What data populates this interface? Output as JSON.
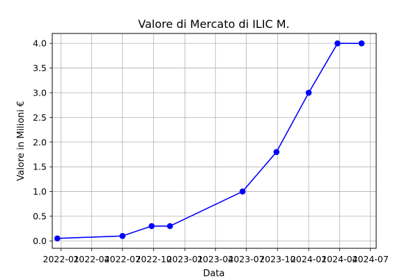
{
  "chart_data": {
    "type": "line",
    "title": "Valore di Mercato di ILIC M.",
    "xlabel": "Data",
    "ylabel": "Valore in Milioni €",
    "xlim": [
      "2021-12-06",
      "2024-07-18"
    ],
    "ylim": [
      -0.15,
      4.2
    ],
    "grid": true,
    "x_ticks": [
      "2022-01",
      "2022-04",
      "2022-07",
      "2022-10",
      "2023-01",
      "2023-04",
      "2023-07",
      "2023-10",
      "2024-01",
      "2024-04",
      "2024-07"
    ],
    "y_ticks": [
      "0.0",
      "0.5",
      "1.0",
      "1.5",
      "2.0",
      "2.5",
      "3.0",
      "3.5",
      "4.0"
    ],
    "series": [
      {
        "color": "#0000ff",
        "marker": "circle",
        "x": [
          "2021-12-21",
          "2022-07-01",
          "2022-09-25",
          "2022-11-18",
          "2023-06-20",
          "2023-09-28",
          "2024-01-01",
          "2024-03-26",
          "2024-06-05"
        ],
        "values": [
          0.05,
          0.1,
          0.3,
          0.3,
          1.0,
          1.8,
          3.0,
          4.0,
          4.0
        ]
      }
    ]
  }
}
